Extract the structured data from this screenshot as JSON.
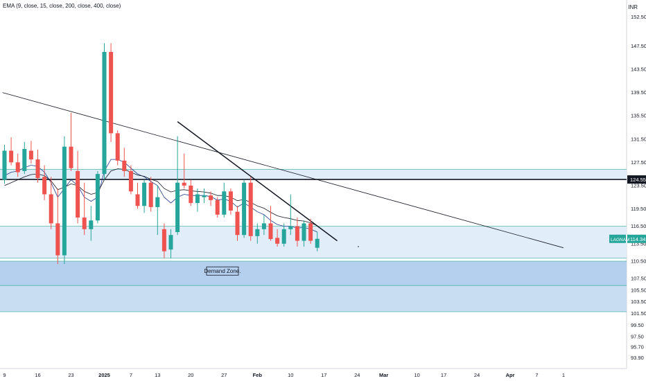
{
  "legend": {
    "text": "EMA (9, close, 15, close, 200, close, 400, close)"
  },
  "currency": "INR",
  "chart_data": {
    "type": "candlestick",
    "symbol": "LAGNAM",
    "last_price": 114.34,
    "price_labels": [
      "114.34",
      "124.55"
    ],
    "ylim": [
      92.5,
      154
    ],
    "y_ticks": [
      "152.50",
      "147.50",
      "143.50",
      "139.50",
      "135.50",
      "131.50",
      "127.50",
      "123.50",
      "119.50",
      "116.50",
      "113.50",
      "110.50",
      "107.50",
      "105.50",
      "103.50",
      "101.50",
      "99.50",
      "97.50",
      "95.70",
      "93.90"
    ],
    "x_ticks": [
      {
        "label": "9",
        "i": 0
      },
      {
        "label": "16",
        "i": 5
      },
      {
        "label": "23",
        "i": 10
      },
      {
        "label": "2025",
        "i": 15,
        "bold": true
      },
      {
        "label": "7",
        "i": 19
      },
      {
        "label": "13",
        "i": 23
      },
      {
        "label": "20",
        "i": 28
      },
      {
        "label": "27",
        "i": 33
      },
      {
        "label": "Feb",
        "i": 38,
        "bold": true
      },
      {
        "label": "10",
        "i": 43
      },
      {
        "label": "17",
        "i": 48
      },
      {
        "label": "24",
        "i": 53
      },
      {
        "label": "Mar",
        "i": 57,
        "bold": true
      },
      {
        "label": "10",
        "i": 62
      },
      {
        "label": "17",
        "i": 66
      },
      {
        "label": "24",
        "i": 71
      },
      {
        "label": "Apr",
        "i": 76,
        "bold": true
      },
      {
        "label": "7",
        "i": 80
      },
      {
        "label": "1",
        "i": 84
      }
    ],
    "candles": [
      [
        124.5,
        130.5,
        123.8,
        129.5
      ],
      [
        129.5,
        131.8,
        127.0,
        127.5
      ],
      [
        127.5,
        129.0,
        125.0,
        125.8
      ],
      [
        126.0,
        131.0,
        125.5,
        129.8
      ],
      [
        129.5,
        131.2,
        127.3,
        128.0
      ],
      [
        128.0,
        129.7,
        124.0,
        124.8
      ],
      [
        125.0,
        127.0,
        121.0,
        122.0
      ],
      [
        122.0,
        125.0,
        116.0,
        117.0
      ],
      [
        117.0,
        123.0,
        110.0,
        111.5
      ],
      [
        111.5,
        132.0,
        110.0,
        130.2
      ],
      [
        130.2,
        136.0,
        126.0,
        126.5
      ],
      [
        126.0,
        129.5,
        117.0,
        118.0
      ],
      [
        118.0,
        124.0,
        115.0,
        116.0
      ],
      [
        116.0,
        120.0,
        114.0,
        117.5
      ],
      [
        117.5,
        126.0,
        117.0,
        125.5
      ],
      [
        125.5,
        148.0,
        124.5,
        146.5
      ],
      [
        146.5,
        148.0,
        131.0,
        132.5
      ],
      [
        132.5,
        133.0,
        127.0,
        127.8
      ],
      [
        127.8,
        130.0,
        125.0,
        126.0
      ],
      [
        126.0,
        127.0,
        122.0,
        122.5
      ],
      [
        122.0,
        124.0,
        119.5,
        120.0
      ],
      [
        120.0,
        124.5,
        118.8,
        124.0
      ],
      [
        124.0,
        125.0,
        119.0,
        119.8
      ],
      [
        119.8,
        123.5,
        115.0,
        121.5
      ],
      [
        116.0,
        117.0,
        111.0,
        112.2
      ],
      [
        112.5,
        116.0,
        111.0,
        115.0
      ],
      [
        115.5,
        132.0,
        115.0,
        124.0
      ],
      [
        124.0,
        129.0,
        123.0,
        123.5
      ],
      [
        123.5,
        124.5,
        120.0,
        120.5
      ],
      [
        120.5,
        123.0,
        119.0,
        122.0
      ],
      [
        121.5,
        123.0,
        120.5,
        121.8
      ],
      [
        121.8,
        122.5,
        120.0,
        121.0
      ],
      [
        121.0,
        121.5,
        118.0,
        118.5
      ],
      [
        118.5,
        124.0,
        118.0,
        122.5
      ],
      [
        122.5,
        123.0,
        118.5,
        119.2
      ],
      [
        119.0,
        120.0,
        114.0,
        115.0
      ],
      [
        115.0,
        124.5,
        114.5,
        124.0
      ],
      [
        124.0,
        125.0,
        114.0,
        114.8
      ],
      [
        114.8,
        117.0,
        113.5,
        116.0
      ],
      [
        116.0,
        118.5,
        115.0,
        117.0
      ],
      [
        117.0,
        120.0,
        114.0,
        114.3
      ],
      [
        114.5,
        116.0,
        113.0,
        113.5
      ],
      [
        113.5,
        117.0,
        113.0,
        116.0
      ],
      [
        116.0,
        122.0,
        115.0,
        116.5
      ],
      [
        116.5,
        118.0,
        113.0,
        114.0
      ],
      [
        114.0,
        117.5,
        113.0,
        117.0
      ],
      [
        117.0,
        117.8,
        113.5,
        114.0
      ],
      [
        112.8,
        115.5,
        112.2,
        114.34
      ]
    ],
    "ema_fast": [
      125.2,
      125.8,
      126.0,
      126.6,
      127.0,
      126.8,
      125.8,
      124.0,
      121.5,
      123.0,
      124.5,
      123.5,
      121.5,
      120.8,
      121.5,
      126.0,
      128.0,
      128.0,
      127.5,
      126.5,
      125.5,
      125.0,
      124.2,
      123.5,
      121.5,
      120.5,
      121.5,
      122.0,
      121.8,
      121.8,
      121.8,
      121.6,
      121.0,
      121.2,
      120.8,
      119.8,
      120.5,
      119.8,
      119.0,
      118.5,
      117.5,
      116.8,
      116.5,
      116.5,
      116.2,
      116.3,
      116.0,
      115.5
    ],
    "ema_slow": [
      123.5,
      124.0,
      124.5,
      125.0,
      125.4,
      125.5,
      125.2,
      124.3,
      122.8,
      123.2,
      123.8,
      123.5,
      122.5,
      122.0,
      122.3,
      124.5,
      126.0,
      126.4,
      126.3,
      125.8,
      125.3,
      125.1,
      124.6,
      124.2,
      123.0,
      122.4,
      122.7,
      122.8,
      122.6,
      122.5,
      122.4,
      122.2,
      121.8,
      121.8,
      121.5,
      120.9,
      121.1,
      120.6,
      120.0,
      119.6,
      118.9,
      118.3,
      118.0,
      117.8,
      117.5,
      117.4,
      117.1,
      116.6
    ],
    "zones": [
      {
        "top": 126.3,
        "bottom": 124.55
      },
      {
        "top": 116.5,
        "bottom": 111.0
      },
      {
        "top": 110.5,
        "bottom": 106.3
      },
      {
        "top": 106.3,
        "bottom": 101.8
      }
    ],
    "horizontal_line": 124.55,
    "trendlines": [
      {
        "from": [
          -0.3,
          139.5
        ],
        "to": [
          84,
          112.8
        ],
        "width": 0.8
      },
      {
        "from": [
          26,
          134.5
        ],
        "to": [
          50,
          114.0
        ],
        "width": 1.5
      }
    ],
    "annotation": "Demand Zone."
  }
}
